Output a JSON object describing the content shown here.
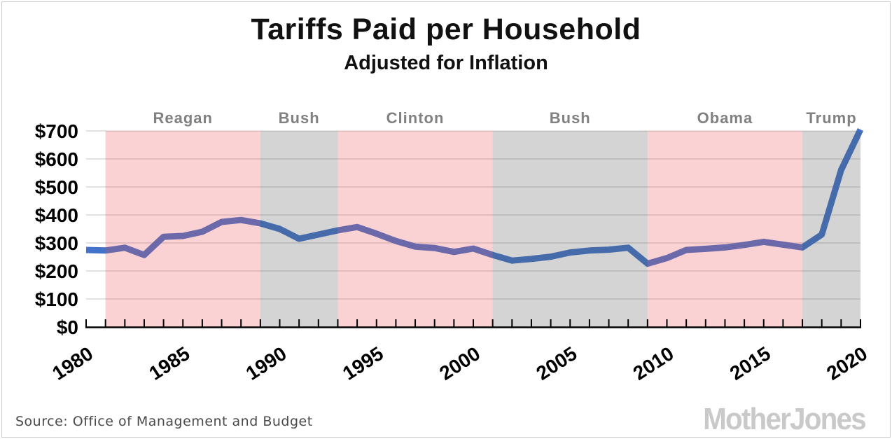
{
  "header": {
    "title": "Tariffs Paid per Household",
    "subtitle": "Adjusted for Inflation"
  },
  "footer": {
    "source": "Source: Office of Management and Budget",
    "logo": "MotherJones"
  },
  "chart_data": {
    "type": "line",
    "title": "Tariffs Paid per Household",
    "subtitle": "Adjusted for Inflation",
    "xlabel": "",
    "ylabel": "",
    "xlim": [
      1980,
      2020
    ],
    "ylim": [
      0,
      700
    ],
    "grid": true,
    "legend_position": "none",
    "y_ticks": [
      0,
      100,
      200,
      300,
      400,
      500,
      600,
      700
    ],
    "y_tick_labels": [
      "$0",
      "$100",
      "$200",
      "$300",
      "$400",
      "$500",
      "$600",
      "$700"
    ],
    "x_labeled_ticks": [
      1980,
      1985,
      1990,
      1995,
      2000,
      2005,
      2010,
      2015,
      2020
    ],
    "x_minor_tick_step_years": 1,
    "series": [
      {
        "name": "Tariffs paid per household (USD, inflation adjusted)",
        "x": [
          1980,
          1981,
          1982,
          1983,
          1984,
          1985,
          1986,
          1987,
          1988,
          1989,
          1990,
          1991,
          1992,
          1993,
          1994,
          1995,
          1996,
          1997,
          1998,
          1999,
          2000,
          2001,
          2002,
          2003,
          2004,
          2005,
          2006,
          2007,
          2008,
          2009,
          2010,
          2011,
          2012,
          2013,
          2014,
          2015,
          2016,
          2017,
          2018,
          2019,
          2020
        ],
        "values": [
          275,
          273,
          283,
          257,
          322,
          325,
          340,
          375,
          382,
          370,
          350,
          315,
          330,
          345,
          357,
          333,
          307,
          287,
          282,
          268,
          280,
          257,
          237,
          243,
          251,
          266,
          273,
          276,
          283,
          226,
          246,
          275,
          279,
          284,
          293,
          304,
          294,
          284,
          330,
          560,
          705
        ]
      }
    ],
    "president_bands": [
      {
        "name": "Reagan",
        "start": 1981,
        "end": 1989,
        "color_key": "red"
      },
      {
        "name": "Bush",
        "start": 1989,
        "end": 1993,
        "color_key": "gray"
      },
      {
        "name": "Clinton",
        "start": 1993,
        "end": 2001,
        "color_key": "red"
      },
      {
        "name": "Bush",
        "start": 2001,
        "end": 2009,
        "color_key": "gray"
      },
      {
        "name": "Obama",
        "start": 2009,
        "end": 2017,
        "color_key": "red"
      },
      {
        "name": "Trump",
        "start": 2017,
        "end": 2020,
        "color_key": "gray"
      }
    ],
    "colors": {
      "line": "#4273c8",
      "grid": "#d9d9d9",
      "axis": "#000000",
      "tick_label": "#000000",
      "band_red_overlay": "rgba(235,75,83,0.25)",
      "band_gray_overlay": "rgba(84,84,84,0.25)",
      "president_label": "#818181"
    }
  }
}
